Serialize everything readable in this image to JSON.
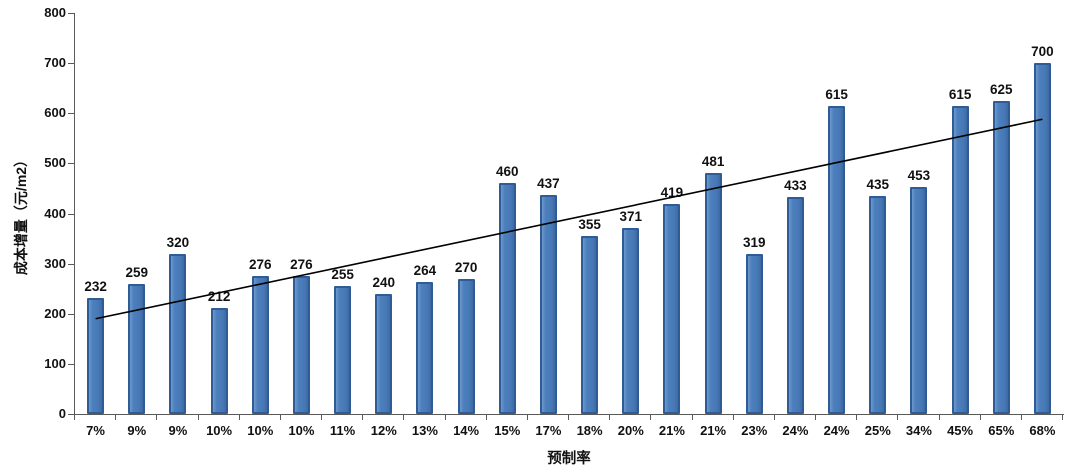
{
  "chart_data": {
    "type": "bar",
    "title": "",
    "xlabel": "预制率",
    "ylabel": "成本增量（元/m2）",
    "categories": [
      "7%",
      "9%",
      "9%",
      "10%",
      "10%",
      "10%",
      "11%",
      "12%",
      "13%",
      "14%",
      "15%",
      "17%",
      "18%",
      "20%",
      "21%",
      "21%",
      "23%",
      "24%",
      "24%",
      "25%",
      "34%",
      "45%",
      "65%",
      "68%"
    ],
    "values": [
      232,
      259,
      320,
      212,
      276,
      276,
      255,
      240,
      264,
      270,
      460,
      437,
      355,
      371,
      419,
      481,
      319,
      433,
      615,
      435,
      453,
      615,
      625,
      700
    ],
    "ylim": [
      0,
      800
    ],
    "ytick_step": 100,
    "yticks": [
      0,
      100,
      200,
      300,
      400,
      500,
      600,
      700,
      800
    ],
    "grid": false,
    "legend": null,
    "bar_fill_color": "#4b80bd",
    "bar_border_color": "#2f5c94",
    "axis_color": "#595959",
    "label_color": "#111111",
    "trendline": {
      "type": "linear",
      "start_value": 190,
      "end_value": 588,
      "color": "#000000"
    }
  }
}
